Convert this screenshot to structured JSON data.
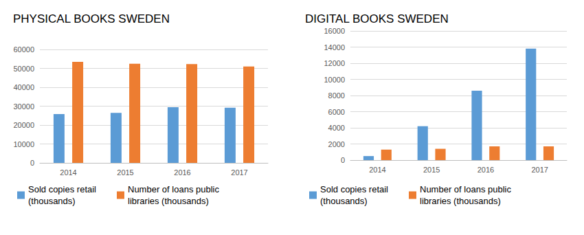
{
  "chart_data": [
    {
      "type": "bar",
      "title": "PHYSICAL BOOKS SWEDEN",
      "categories": [
        "2014",
        "2015",
        "2016",
        "2017"
      ],
      "series": [
        {
          "name": "Sold copies retail (thousands)",
          "color": "#5b9bd5",
          "values": [
            25800,
            26500,
            29500,
            29200
          ]
        },
        {
          "name": "Number of loans public libraries (thousands)",
          "color": "#ed7d31",
          "values": [
            53500,
            52500,
            52300,
            51000
          ]
        }
      ],
      "ylim": [
        0,
        60000
      ],
      "yticks": [
        0,
        10000,
        20000,
        30000,
        40000,
        50000,
        60000
      ],
      "grid": true,
      "legend": "bottom"
    },
    {
      "type": "bar",
      "title": "DIGITAL BOOKS SWEDEN",
      "categories": [
        "2014",
        "2015",
        "2016",
        "2017"
      ],
      "series": [
        {
          "name": "Sold copies retail (thousands)",
          "color": "#5b9bd5",
          "values": [
            500,
            4200,
            8600,
            13800
          ]
        },
        {
          "name": "Number of loans public libraries (thousands)",
          "color": "#ed7d31",
          "values": [
            1300,
            1400,
            1700,
            1700
          ]
        }
      ],
      "ylim": [
        0,
        16000
      ],
      "yticks": [
        0,
        2000,
        4000,
        6000,
        8000,
        10000,
        12000,
        14000,
        16000
      ],
      "grid": true,
      "legend": "bottom"
    }
  ]
}
